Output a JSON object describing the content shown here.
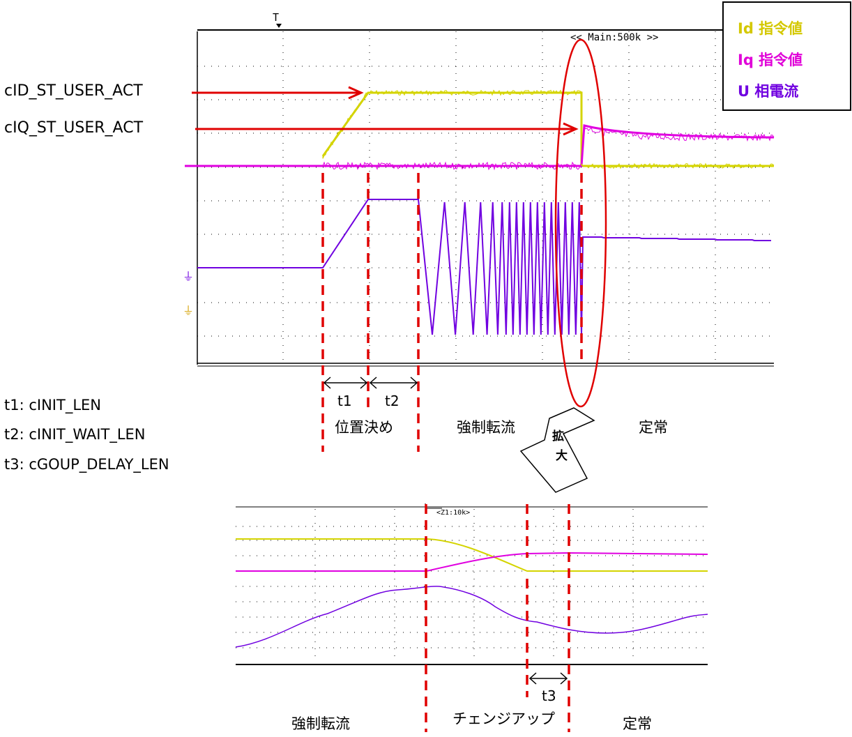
{
  "legend": {
    "items": [
      {
        "label": "Id 指令値",
        "color": "#d4d400"
      },
      {
        "label": "Iq 指令値",
        "color": "#e000e0"
      },
      {
        "label": "U 相電流",
        "color": "#7000e0"
      }
    ]
  },
  "scope_top": {
    "header": "<< Main:500k >>",
    "trigger_marker": "T",
    "ground_marker": "⏚"
  },
  "scope_bottom": {
    "header": "<Z1:10k>"
  },
  "arrows": {
    "id_label": "cID_ST_USER_ACT",
    "iq_label": "cIQ_ST_USER_ACT"
  },
  "intervals": {
    "t1": "t1",
    "t2": "t2",
    "t3": "t3"
  },
  "definitions": [
    "t1: cINIT_LEN",
    "t2: cINIT_WAIT_LEN",
    "t3: cGOUP_DELAY_LEN"
  ],
  "phases_top": {
    "positioning": "位置決め",
    "forced": "強制転流",
    "steady": "定常"
  },
  "zoom": {
    "line1": "拡",
    "line2": "大"
  },
  "phases_bottom": {
    "forced": "強制転流",
    "changeup": "チェンジアップ",
    "steady": "定常"
  },
  "colors": {
    "id": "#d4d400",
    "iq": "#e000e0",
    "u": "#7000e0",
    "marker": "#e00000"
  }
}
